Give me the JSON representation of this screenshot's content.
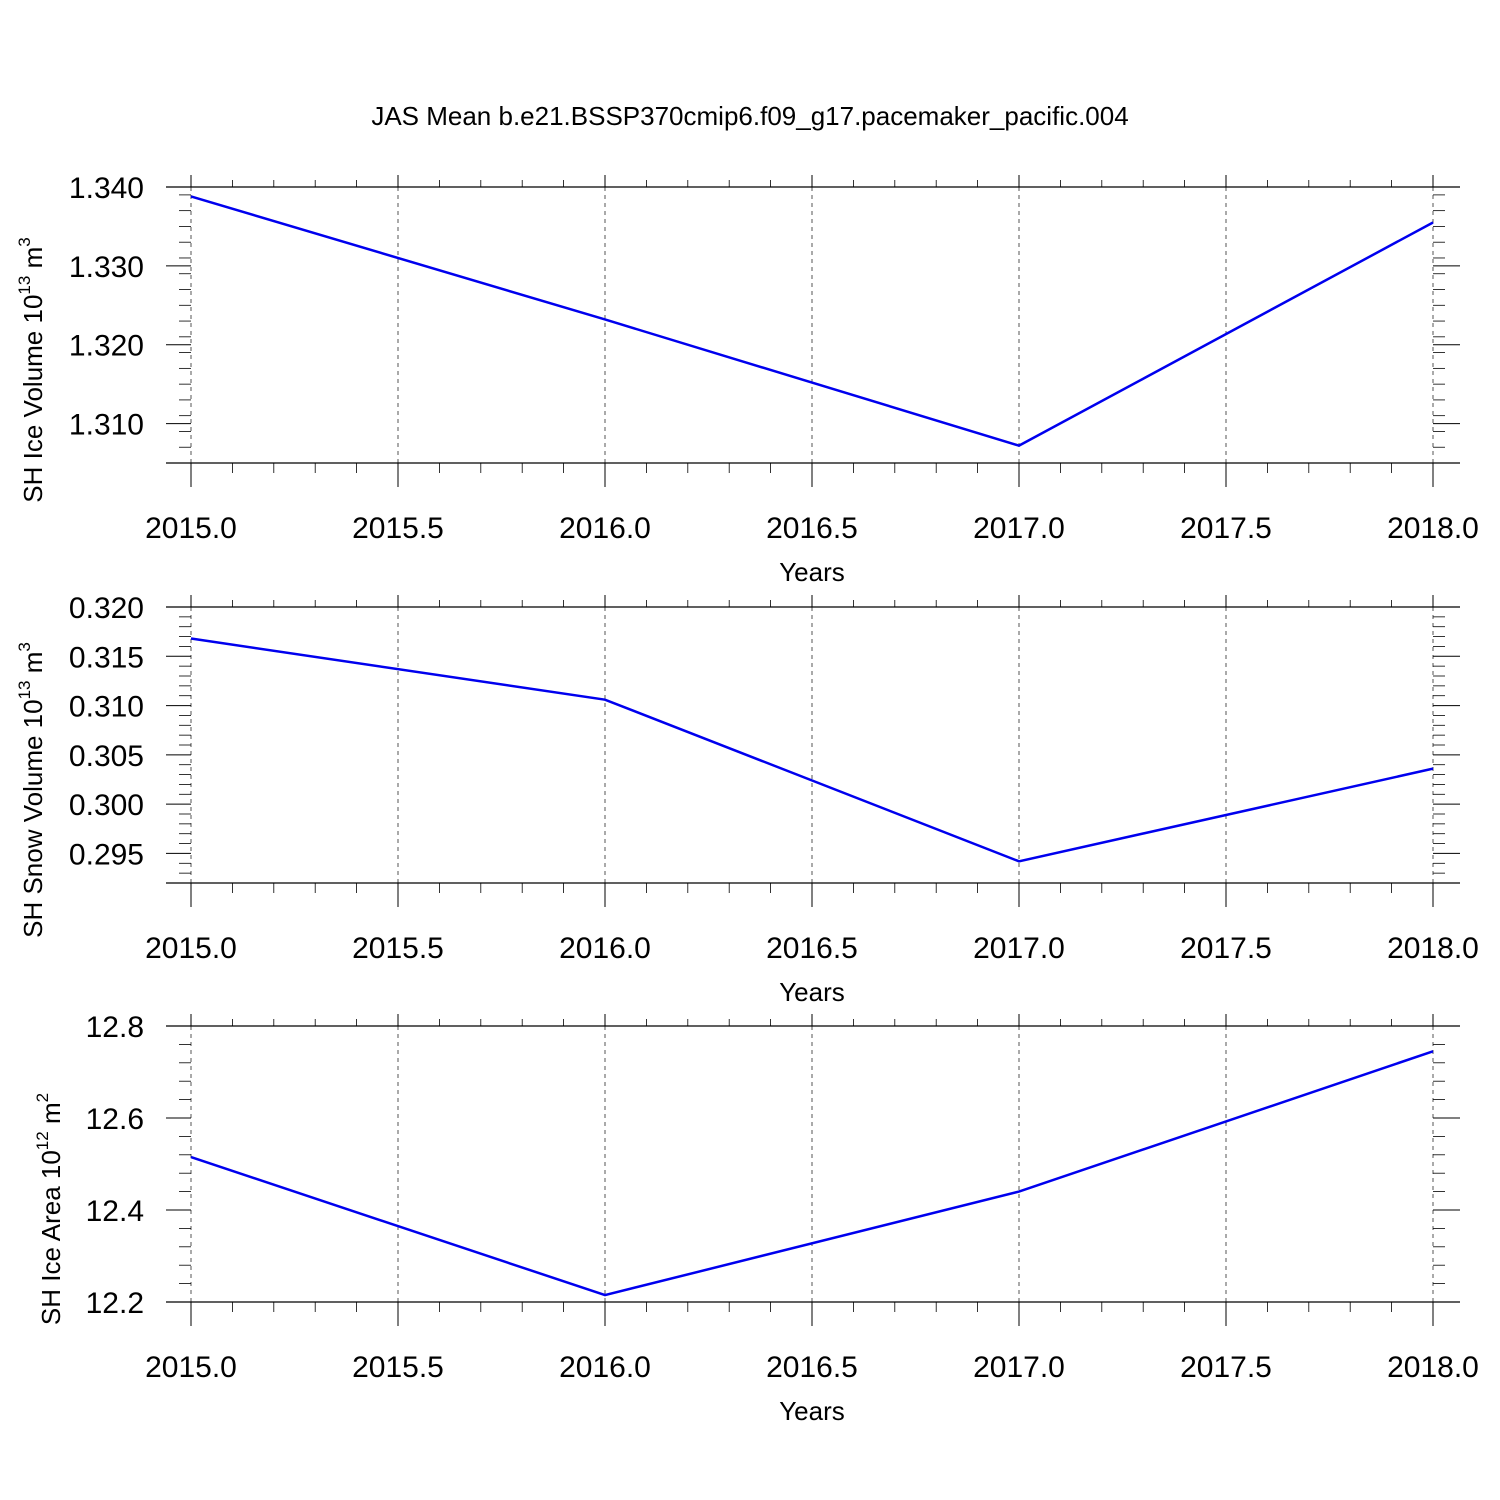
{
  "figure_title": "JAS Mean b.e21.BSSP370cmip6.f09_g17.pacemaker_pacific.004",
  "colors": {
    "line": "#0000ee",
    "axes": "#000000",
    "grid": "#555555"
  },
  "chart_data": [
    {
      "type": "line",
      "ylabel": "SH Ice Volume 10",
      "ylabel_exponent": "13",
      "ylabel_unit": " m",
      "ylabel_unit_exponent": "3",
      "xlabel": "Years",
      "xlim": [
        2015.0,
        2018.0
      ],
      "ylim": [
        1.305,
        1.34
      ],
      "x_ticks": [
        "2015.0",
        "2015.5",
        "2016.0",
        "2016.5",
        "2017.0",
        "2017.5",
        "2018.0"
      ],
      "y_ticks": [
        {
          "value": 1.31,
          "label": "1.310"
        },
        {
          "value": 1.32,
          "label": "1.320"
        },
        {
          "value": 1.33,
          "label": "1.330"
        },
        {
          "value": 1.34,
          "label": "1.340"
        }
      ],
      "y_minor_step": 0.002,
      "grid": "vertical-dashed",
      "x": [
        2015,
        2016,
        2017,
        2018
      ],
      "y": [
        1.3388,
        1.3232,
        1.3072,
        1.3355
      ]
    },
    {
      "type": "line",
      "ylabel": "SH Snow Volume 10",
      "ylabel_exponent": "13",
      "ylabel_unit": " m",
      "ylabel_unit_exponent": "3",
      "xlabel": "Years",
      "xlim": [
        2015.0,
        2018.0
      ],
      "ylim": [
        0.292,
        0.32
      ],
      "x_ticks": [
        "2015.0",
        "2015.5",
        "2016.0",
        "2016.5",
        "2017.0",
        "2017.5",
        "2018.0"
      ],
      "y_ticks": [
        {
          "value": 0.295,
          "label": "0.295"
        },
        {
          "value": 0.3,
          "label": "0.300"
        },
        {
          "value": 0.305,
          "label": "0.305"
        },
        {
          "value": 0.31,
          "label": "0.310"
        },
        {
          "value": 0.315,
          "label": "0.315"
        },
        {
          "value": 0.32,
          "label": "0.320"
        }
      ],
      "y_minor_step": 0.001,
      "grid": "vertical-dashed",
      "x": [
        2015,
        2016,
        2017,
        2018
      ],
      "y": [
        0.3168,
        0.3106,
        0.2942,
        0.3036
      ]
    },
    {
      "type": "line",
      "ylabel": "SH Ice Area 10",
      "ylabel_exponent": "12",
      "ylabel_unit": " m",
      "ylabel_unit_exponent": "2",
      "xlabel": "Years",
      "xlim": [
        2015.0,
        2018.0
      ],
      "ylim": [
        12.2,
        12.8
      ],
      "x_ticks": [
        "2015.0",
        "2015.5",
        "2016.0",
        "2016.5",
        "2017.0",
        "2017.5",
        "2018.0"
      ],
      "y_ticks": [
        {
          "value": 12.2,
          "label": "12.2"
        },
        {
          "value": 12.4,
          "label": "12.4"
        },
        {
          "value": 12.6,
          "label": "12.6"
        },
        {
          "value": 12.8,
          "label": "12.8"
        }
      ],
      "y_minor_step": 0.04,
      "grid": "vertical-dashed",
      "x": [
        2015,
        2016,
        2017,
        2018
      ],
      "y": [
        12.515,
        12.215,
        12.44,
        12.745
      ]
    }
  ]
}
